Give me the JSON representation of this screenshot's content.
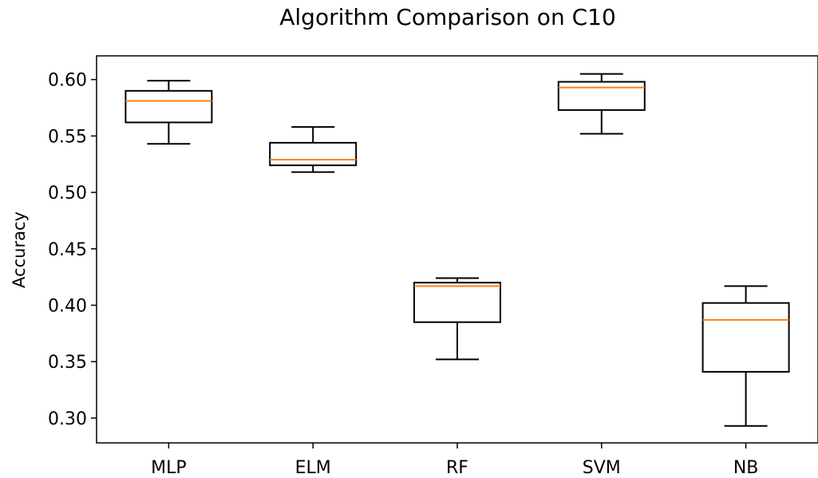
{
  "chart_data": {
    "type": "box",
    "title": "Algorithm Comparison on C10",
    "xlabel": "",
    "ylabel": "Accuracy",
    "categories": [
      "MLP",
      "ELM",
      "RF",
      "SVM",
      "NB"
    ],
    "boxes": [
      {
        "label": "MLP",
        "whisker_low": 0.543,
        "q1": 0.562,
        "median": 0.581,
        "q3": 0.59,
        "whisker_high": 0.599
      },
      {
        "label": "ELM",
        "whisker_low": 0.518,
        "q1": 0.524,
        "median": 0.529,
        "q3": 0.544,
        "whisker_high": 0.558
      },
      {
        "label": "RF",
        "whisker_low": 0.352,
        "q1": 0.385,
        "median": 0.417,
        "q3": 0.42,
        "whisker_high": 0.424
      },
      {
        "label": "SVM",
        "whisker_low": 0.552,
        "q1": 0.573,
        "median": 0.593,
        "q3": 0.598,
        "whisker_high": 0.605
      },
      {
        "label": "NB",
        "whisker_low": 0.293,
        "q1": 0.341,
        "median": 0.387,
        "q3": 0.402,
        "whisker_high": 0.417
      }
    ],
    "yticks": [
      "0.30",
      "0.35",
      "0.40",
      "0.45",
      "0.50",
      "0.55",
      "0.60"
    ],
    "ylim": [
      0.278,
      0.621
    ],
    "grid": false,
    "colors": {
      "box": "#000000",
      "median": "#ff7f0e"
    }
  }
}
